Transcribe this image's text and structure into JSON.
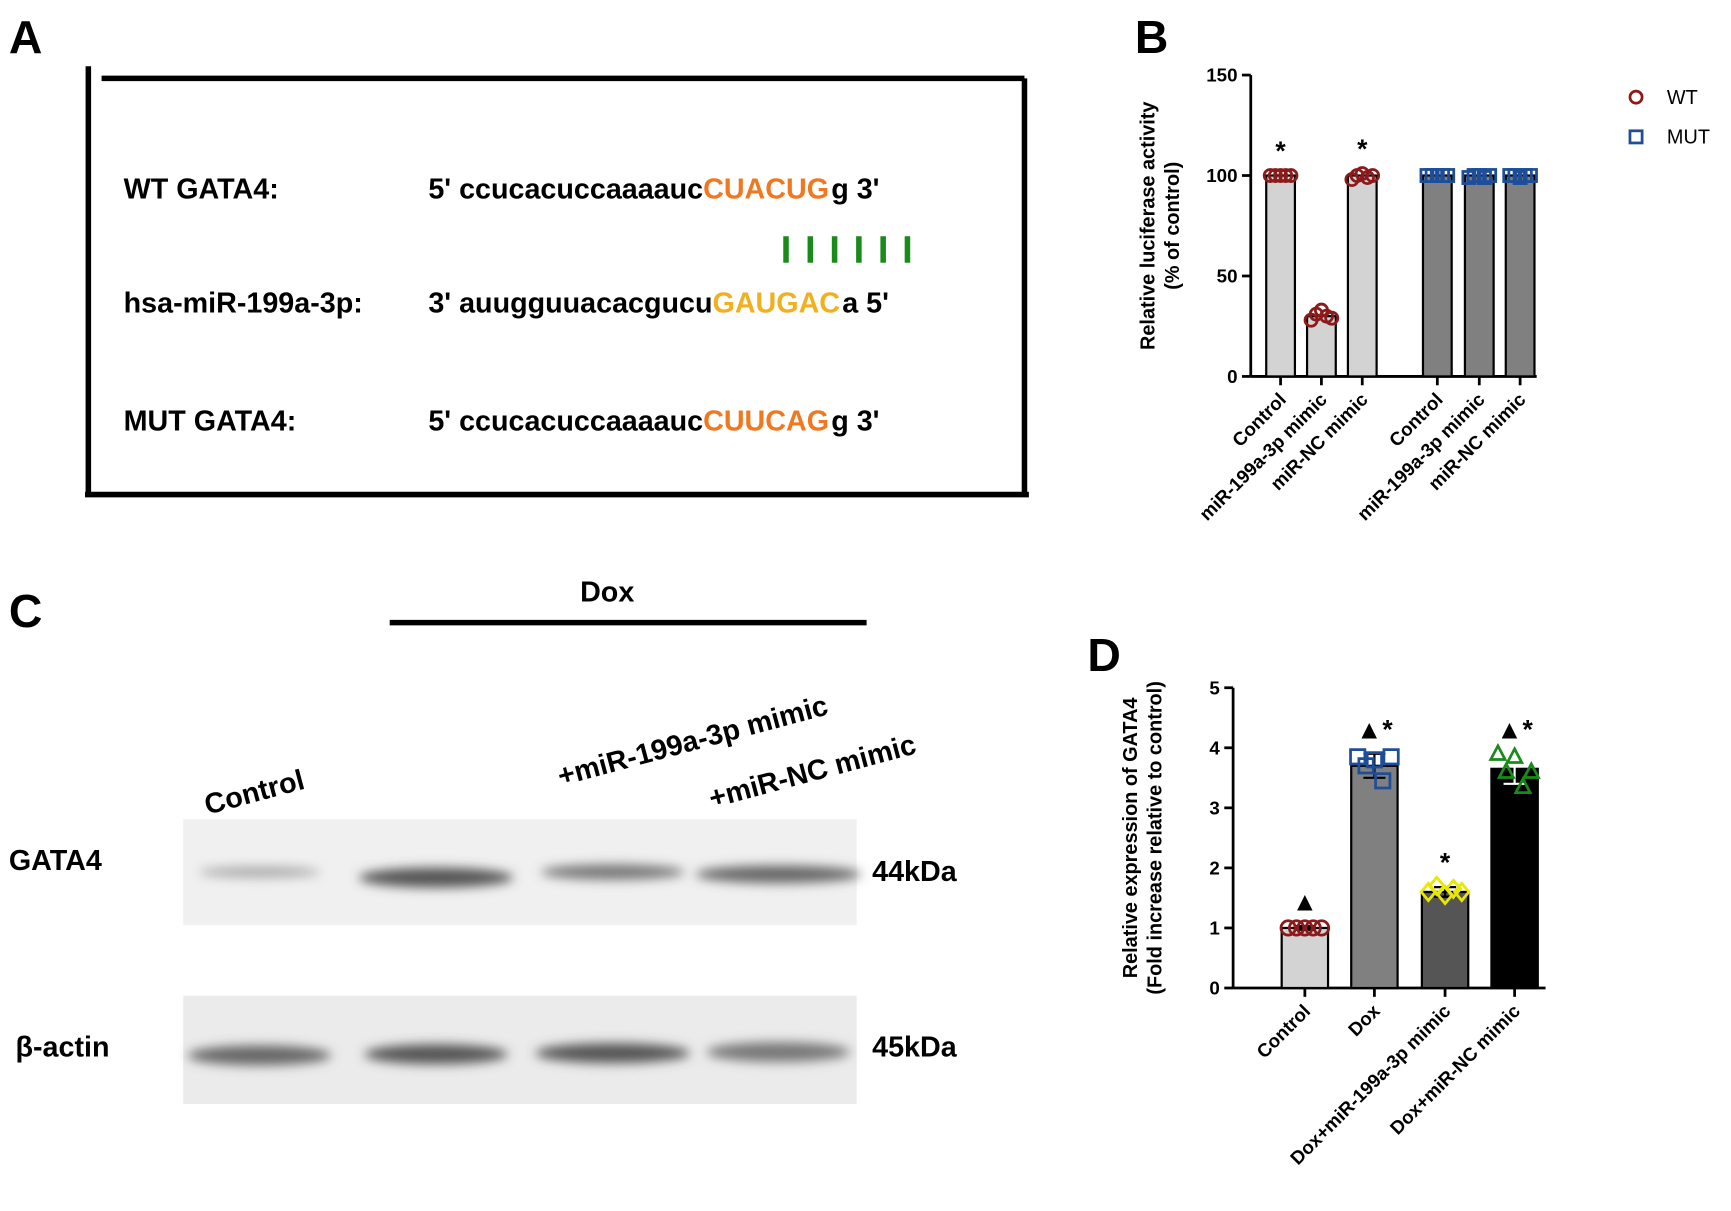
{
  "panel_labels": [
    "A",
    "B",
    "C",
    "D"
  ],
  "sequences": {
    "rows": [
      {
        "name": "WT GATA4:",
        "prefix": "5' ccucacuccaaaauc",
        "site": "CUACUG",
        "suffix": "g 3'"
      },
      {
        "name": "hsa-miR-199a-3p:",
        "prefix": "3' auugguuacacgucu",
        "site": "GAUGAC",
        "suffix": "a 5'"
      },
      {
        "name": "MUT GATA4:",
        "prefix": "5' ccucacuccaaaauc",
        "site": "CUUCAG",
        "suffix": "g 3'"
      }
    ]
  },
  "blot": {
    "treatment": "Dox",
    "lanes": [
      "Control",
      "+miR-199a-3p mimic",
      "+miR-NC mimic"
    ],
    "rows": [
      {
        "name": "GATA4",
        "size": "44kDa"
      },
      {
        "name": "β-actin",
        "size": "45kDa"
      }
    ]
  },
  "chart_data": [
    {
      "type": "bar",
      "ylabel": [
        "Relative luciferase activity",
        "(% of control)"
      ],
      "categories": [
        "Control",
        "miR-199a-3p mimic",
        "miR-NC mimic",
        "Control",
        "miR-199a-3p mimic",
        "miR-NC mimic"
      ],
      "series": [
        {
          "name": "WT",
          "color": "#8b1a1a",
          "bar_color": "#d3d3d3",
          "marker": "circle",
          "values": [
            100,
            30,
            100,
            null,
            null,
            null
          ],
          "points": [
            [
              100,
              100,
              100,
              100,
              100
            ],
            [
              28,
              31,
              33,
              30,
              29
            ],
            [
              98,
              100,
              101,
              99,
              100
            ],
            null,
            null,
            null
          ]
        },
        {
          "name": "MUT",
          "color": "#1f4e99",
          "bar_color": "#808080",
          "marker": "square",
          "values": [
            null,
            null,
            null,
            100,
            100,
            100
          ],
          "points": [
            null,
            null,
            null,
            [
              100,
              100,
              100,
              100,
              100
            ],
            [
              99,
              100,
              100,
              99,
              100
            ],
            [
              100,
              100,
              99,
              100,
              100
            ]
          ]
        }
      ],
      "annotations": [
        "*",
        null,
        "*",
        null,
        null,
        null
      ],
      "ylim": [
        0,
        150
      ],
      "yticks": [
        0,
        50,
        100,
        150
      ],
      "legend": "top-right"
    },
    {
      "type": "bar",
      "ylabel": [
        "Relative expression of GATA4",
        "(Fold increase relative to control)"
      ],
      "categories": [
        "Control",
        "Dox",
        "Dox+miR-199a-3p mimic",
        "Dox+miR-NC mimic"
      ],
      "values": [
        1,
        3.7,
        1.6,
        3.65
      ],
      "errors": [
        0.03,
        0.2,
        0.08,
        0.25
      ],
      "bar_colors": [
        "#d3d3d3",
        "#808080",
        "#555555",
        "#000000"
      ],
      "marker_colors": [
        "#8b1a1a",
        "#1f4e99",
        "#e8e800",
        "#1a8a1a"
      ],
      "markers": [
        "circle",
        "square",
        "diamond",
        "triangle"
      ],
      "points": [
        [
          1,
          1,
          1,
          1,
          1
        ],
        [
          3.85,
          3.7,
          3.8,
          3.45,
          3.85
        ],
        [
          1.6,
          1.7,
          1.55,
          1.65,
          1.6
        ],
        [
          3.9,
          3.6,
          3.85,
          3.35,
          3.6
        ]
      ],
      "annotations": [
        "▲",
        "▲*",
        "*",
        "▲*"
      ],
      "ylim": [
        0,
        5
      ],
      "yticks": [
        0,
        1,
        2,
        3,
        4,
        5
      ]
    }
  ]
}
